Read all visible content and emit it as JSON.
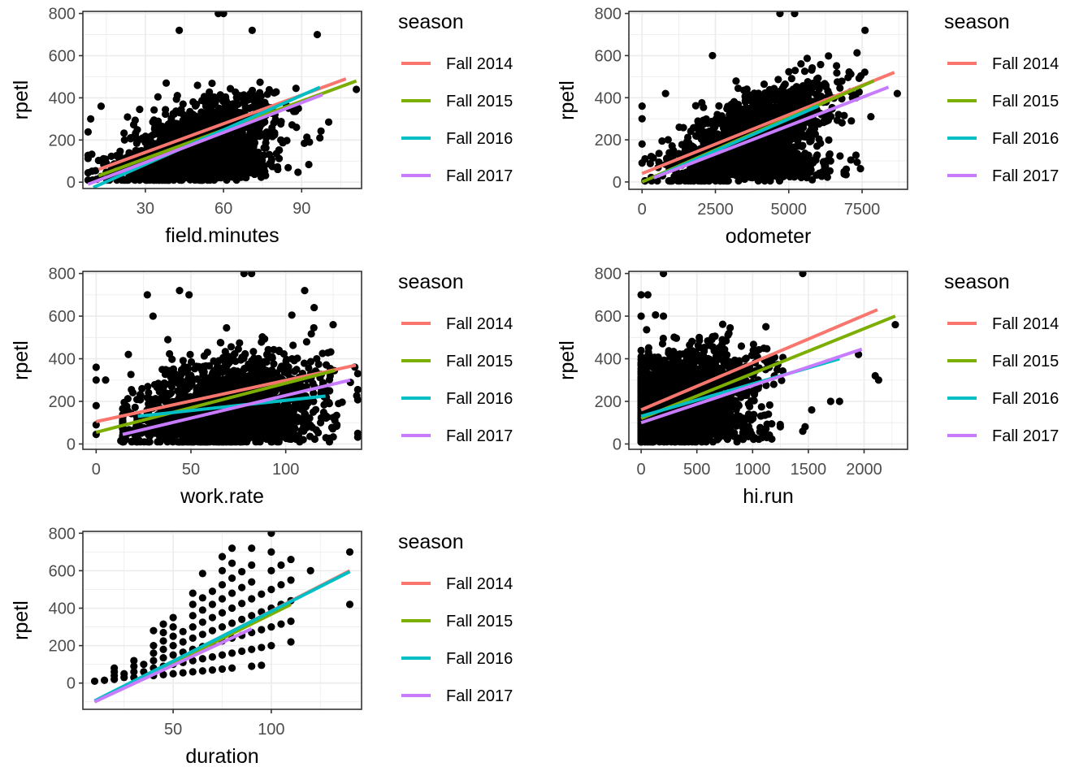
{
  "chart_data": [
    {
      "type": "scatter",
      "title": "",
      "xlabel": "field.minutes",
      "ylabel": "rpetl",
      "xlim": [
        6,
        113
      ],
      "ylim": [
        -30,
        810
      ],
      "xticks": [
        30,
        60,
        90
      ],
      "yticks": [
        0,
        200,
        400,
        600,
        800
      ],
      "grid": true,
      "legend": {
        "title": "season",
        "position": "right"
      },
      "point_cloud": {
        "x_center": 50,
        "x_spread": 14,
        "y_slope": 4.2,
        "y_intercept": -20,
        "y_spread": 85,
        "count": 1400,
        "x_min": 8,
        "x_max": 110,
        "y_min": 10,
        "y_max": 800
      },
      "outliers": [
        [
          58,
          800
        ],
        [
          60,
          800
        ],
        [
          43,
          720
        ],
        [
          71,
          720
        ],
        [
          96,
          700
        ],
        [
          13,
          360
        ],
        [
          9,
          300
        ],
        [
          111,
          440
        ],
        [
          88,
          260
        ],
        [
          93,
          190
        ],
        [
          97,
          210
        ],
        [
          82,
          200
        ],
        [
          65,
          10
        ],
        [
          38,
          470
        ],
        [
          35,
          180
        ],
        [
          22,
          200
        ],
        [
          20,
          110
        ]
      ],
      "series": [
        {
          "name": "Fall 2014",
          "x": [
            12,
            107
          ],
          "y": [
            60,
            490
          ]
        },
        {
          "name": "Fall 2015",
          "x": [
            12,
            111
          ],
          "y": [
            30,
            480
          ]
        },
        {
          "name": "Fall 2016",
          "x": [
            10,
            97
          ],
          "y": [
            -25,
            450
          ]
        },
        {
          "name": "Fall 2017",
          "x": [
            8,
            98
          ],
          "y": [
            -10,
            415
          ]
        }
      ]
    },
    {
      "type": "scatter",
      "title": "",
      "xlabel": "odometer",
      "ylabel": "rpetl",
      "xlim": [
        -450,
        9050
      ],
      "ylim": [
        -35,
        810
      ],
      "xticks": [
        0,
        2500,
        5000,
        7500
      ],
      "yticks": [
        0,
        200,
        400,
        600,
        800
      ],
      "grid": true,
      "legend": {
        "title": "season",
        "position": "right"
      },
      "point_cloud": {
        "x_center": 3800,
        "x_spread": 1300,
        "y_slope": 0.055,
        "y_intercept": 20,
        "y_spread": 90,
        "count": 1400,
        "x_min": 100,
        "x_max": 8700,
        "y_min": 5,
        "y_max": 800
      },
      "outliers": [
        [
          4700,
          800
        ],
        [
          5200,
          800
        ],
        [
          7600,
          720
        ],
        [
          0,
          360
        ],
        [
          0,
          300
        ],
        [
          0,
          180
        ],
        [
          0,
          90
        ],
        [
          800,
          420
        ],
        [
          8700,
          420
        ],
        [
          5800,
          10
        ],
        [
          5700,
          50
        ],
        [
          4600,
          70
        ],
        [
          5100,
          60
        ],
        [
          7800,
          310
        ],
        [
          2400,
          600
        ]
      ],
      "series": [
        {
          "name": "Fall 2014",
          "x": [
            0,
            8600
          ],
          "y": [
            40,
            520
          ]
        },
        {
          "name": "Fall 2015",
          "x": [
            0,
            7900
          ],
          "y": [
            0,
            480
          ]
        },
        {
          "name": "Fall 2016",
          "x": [
            400,
            6000
          ],
          "y": [
            20,
            360
          ]
        },
        {
          "name": "Fall 2017",
          "x": [
            400,
            8400
          ],
          "y": [
            20,
            450
          ]
        }
      ]
    },
    {
      "type": "scatter",
      "title": "",
      "xlabel": "work.rate",
      "ylabel": "rpetl",
      "xlim": [
        -7,
        140
      ],
      "ylim": [
        -25,
        810
      ],
      "xticks": [
        0,
        50,
        100
      ],
      "yticks": [
        0,
        200,
        400,
        600,
        800
      ],
      "grid": true,
      "legend": {
        "title": "season",
        "position": "right"
      },
      "point_cloud": {
        "x_center": 70,
        "x_spread": 24,
        "y_slope": 1.6,
        "y_intercept": 80,
        "y_spread": 110,
        "count": 1400,
        "x_min": 14,
        "x_max": 138,
        "y_min": 10,
        "y_max": 800
      },
      "outliers": [
        [
          78,
          800
        ],
        [
          82,
          800
        ],
        [
          27,
          700
        ],
        [
          44,
          720
        ],
        [
          49,
          700
        ],
        [
          110,
          720
        ],
        [
          30,
          600
        ],
        [
          17,
          420
        ],
        [
          0,
          360
        ],
        [
          0,
          300
        ],
        [
          5,
          300
        ],
        [
          0,
          180
        ],
        [
          0,
          90
        ],
        [
          0,
          45
        ],
        [
          13,
          15
        ],
        [
          127,
          90
        ],
        [
          138,
          330
        ],
        [
          115,
          640
        ],
        [
          125,
          560
        ]
      ],
      "series": [
        {
          "name": "Fall 2014",
          "x": [
            0,
            137
          ],
          "y": [
            105,
            370
          ]
        },
        {
          "name": "Fall 2015",
          "x": [
            0,
            126
          ],
          "y": [
            55,
            345
          ]
        },
        {
          "name": "Fall 2016",
          "x": [
            22,
            121
          ],
          "y": [
            130,
            225
          ]
        },
        {
          "name": "Fall 2017",
          "x": [
            14,
            134
          ],
          "y": [
            45,
            300
          ]
        }
      ]
    },
    {
      "type": "scatter",
      "title": "",
      "xlabel": "hi.run",
      "ylabel": "rpetl",
      "xlim": [
        -110,
        2390
      ],
      "ylim": [
        -25,
        810
      ],
      "xticks": [
        0,
        500,
        1000,
        1500,
        2000
      ],
      "yticks": [
        0,
        200,
        400,
        600,
        800
      ],
      "grid": true,
      "legend": {
        "title": "season",
        "position": "right"
      },
      "point_cloud": {
        "x_center": 350,
        "x_spread": 330,
        "y_slope": 0.12,
        "y_intercept": 180,
        "y_spread": 110,
        "count": 1500,
        "x_min": 0,
        "x_max": 2300,
        "y_min": 10,
        "y_max": 800
      },
      "outliers": [
        [
          200,
          800
        ],
        [
          1450,
          800
        ],
        [
          0,
          700
        ],
        [
          60,
          700
        ],
        [
          0,
          600
        ],
        [
          200,
          600
        ],
        [
          2280,
          560
        ],
        [
          1950,
          420
        ],
        [
          2100,
          320
        ],
        [
          2130,
          300
        ],
        [
          1450,
          60
        ],
        [
          860,
          10
        ],
        [
          1530,
          160
        ],
        [
          1700,
          200
        ],
        [
          1780,
          200
        ]
      ],
      "series": [
        {
          "name": "Fall 2014",
          "x": [
            0,
            2120
          ],
          "y": [
            160,
            630
          ]
        },
        {
          "name": "Fall 2015",
          "x": [
            0,
            2280
          ],
          "y": [
            120,
            600
          ]
        },
        {
          "name": "Fall 2016",
          "x": [
            0,
            1780
          ],
          "y": [
            130,
            400
          ]
        },
        {
          "name": "Fall 2017",
          "x": [
            0,
            1980
          ],
          "y": [
            100,
            445
          ]
        }
      ]
    },
    {
      "type": "scatter",
      "title": "",
      "xlabel": "duration",
      "ylabel": "rpetl",
      "xlim": [
        4,
        146
      ],
      "ylim": [
        -140,
        810
      ],
      "xticks": [
        50,
        100
      ],
      "yticks": [
        0,
        200,
        400,
        600,
        800
      ],
      "grid": true,
      "legend": {
        "title": "season",
        "position": "right"
      },
      "points": [
        [
          10,
          10
        ],
        [
          15,
          15
        ],
        [
          20,
          20
        ],
        [
          20,
          40
        ],
        [
          20,
          60
        ],
        [
          20,
          80
        ],
        [
          25,
          30
        ],
        [
          25,
          50
        ],
        [
          30,
          30
        ],
        [
          30,
          60
        ],
        [
          30,
          90
        ],
        [
          30,
          120
        ],
        [
          35,
          60
        ],
        [
          35,
          100
        ],
        [
          40,
          40
        ],
        [
          40,
          80
        ],
        [
          40,
          120
        ],
        [
          40,
          160
        ],
        [
          40,
          200
        ],
        [
          40,
          280
        ],
        [
          45,
          45
        ],
        [
          45,
          90
        ],
        [
          45,
          135
        ],
        [
          45,
          180
        ],
        [
          45,
          225
        ],
        [
          45,
          270
        ],
        [
          45,
          315
        ],
        [
          50,
          50
        ],
        [
          50,
          100
        ],
        [
          50,
          150
        ],
        [
          50,
          200
        ],
        [
          50,
          250
        ],
        [
          50,
          300
        ],
        [
          50,
          350
        ],
        [
          55,
          55
        ],
        [
          55,
          110
        ],
        [
          55,
          165
        ],
        [
          55,
          220
        ],
        [
          55,
          275
        ],
        [
          60,
          60
        ],
        [
          60,
          120
        ],
        [
          60,
          180
        ],
        [
          60,
          240
        ],
        [
          60,
          300
        ],
        [
          60,
          360
        ],
        [
          60,
          420
        ],
        [
          60,
          480
        ],
        [
          65,
          65
        ],
        [
          65,
          130
        ],
        [
          65,
          195
        ],
        [
          65,
          260
        ],
        [
          65,
          325
        ],
        [
          65,
          390
        ],
        [
          65,
          455
        ],
        [
          65,
          585
        ],
        [
          70,
          70
        ],
        [
          70,
          140
        ],
        [
          70,
          210
        ],
        [
          70,
          280
        ],
        [
          70,
          350
        ],
        [
          70,
          420
        ],
        [
          70,
          490
        ],
        [
          75,
          75
        ],
        [
          75,
          150
        ],
        [
          75,
          225
        ],
        [
          75,
          300
        ],
        [
          75,
          375
        ],
        [
          75,
          450
        ],
        [
          75,
          525
        ],
        [
          75,
          600
        ],
        [
          75,
          675
        ],
        [
          80,
          80
        ],
        [
          80,
          160
        ],
        [
          80,
          240
        ],
        [
          80,
          320
        ],
        [
          80,
          400
        ],
        [
          80,
          480
        ],
        [
          80,
          560
        ],
        [
          80,
          640
        ],
        [
          80,
          720
        ],
        [
          85,
          170
        ],
        [
          85,
          255
        ],
        [
          85,
          340
        ],
        [
          85,
          425
        ],
        [
          85,
          510
        ],
        [
          85,
          595
        ],
        [
          90,
          90
        ],
        [
          90,
          180
        ],
        [
          90,
          270
        ],
        [
          90,
          360
        ],
        [
          90,
          450
        ],
        [
          90,
          540
        ],
        [
          90,
          630
        ],
        [
          90,
          720
        ],
        [
          95,
          95
        ],
        [
          95,
          190
        ],
        [
          95,
          285
        ],
        [
          95,
          380
        ],
        [
          95,
          475
        ],
        [
          100,
          200
        ],
        [
          100,
          300
        ],
        [
          100,
          400
        ],
        [
          100,
          500
        ],
        [
          100,
          600
        ],
        [
          100,
          700
        ],
        [
          100,
          800
        ],
        [
          105,
          315
        ],
        [
          105,
          420
        ],
        [
          105,
          525
        ],
        [
          105,
          630
        ],
        [
          110,
          220
        ],
        [
          110,
          330
        ],
        [
          110,
          440
        ],
        [
          110,
          550
        ],
        [
          110,
          660
        ],
        [
          120,
          600
        ],
        [
          140,
          420
        ],
        [
          140,
          700
        ]
      ],
      "series": [
        {
          "name": "Fall 2014",
          "x": [
            10,
            140
          ],
          "y": [
            -100,
            600
          ]
        },
        {
          "name": "Fall 2015",
          "x": [
            10,
            110
          ],
          "y": [
            -100,
            420
          ]
        },
        {
          "name": "Fall 2016",
          "x": [
            10,
            140
          ],
          "y": [
            -95,
            595
          ]
        },
        {
          "name": "Fall 2017",
          "x": [
            10,
            90
          ],
          "y": [
            -100,
            290
          ]
        }
      ]
    }
  ],
  "legend": {
    "title": "season",
    "items": [
      {
        "label": "Fall 2014",
        "color": "#F8766D"
      },
      {
        "label": "Fall 2015",
        "color": "#7CAE00"
      },
      {
        "label": "Fall 2016",
        "color": "#00BFC4"
      },
      {
        "label": "Fall 2017",
        "color": "#C77CFF"
      }
    ]
  },
  "colors": {
    "point": "#000000",
    "grid": "#EBEBEB",
    "panel_border": "#333333",
    "tick_text": "#4D4D4D"
  }
}
